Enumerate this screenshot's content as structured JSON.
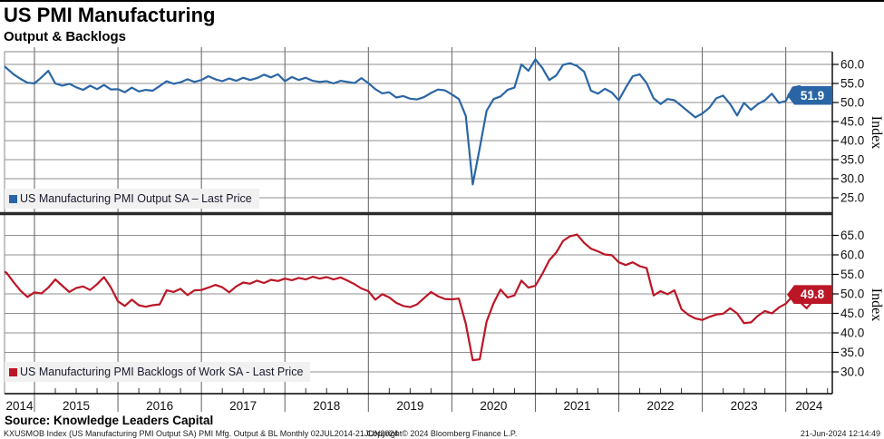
{
  "header": {
    "title": "US PMI Manufacturing",
    "subtitle": "Output & Backlogs"
  },
  "colors": {
    "output_blue": "#2a66a5",
    "backlogs_red": "#bb1626",
    "gridline": "#8f8f8f",
    "year_line": "#5f5f5f",
    "panel_border": "#333333",
    "separator": "#2b2b2b",
    "legend_bg": "#f1f1f1"
  },
  "right_axis": {
    "label_top": "Index",
    "label_bottom": "Index"
  },
  "chart_data": [
    {
      "type": "line",
      "name": "output",
      "legend": "US Manufacturing PMI Output SA – Last Price",
      "color": "#2a66a5",
      "last_price": "51.9",
      "x_start": "2014-07",
      "x_end": "2024-06",
      "frequency": "monthly",
      "ylim": [
        21,
        63
      ],
      "y_ticks": [
        "60.0",
        "55.0",
        "50.0",
        "45.0",
        "40.0",
        "35.0",
        "30.0",
        "25.0"
      ],
      "y_tick_values": [
        60,
        55,
        50,
        45,
        40,
        35,
        30,
        25
      ],
      "values": [
        61.0,
        60.6,
        59.0,
        57.4,
        56.2,
        55.2,
        55.0,
        56.6,
        58.3,
        55.0,
        54.4,
        54.9,
        54.0,
        53.3,
        54.4,
        53.5,
        54.6,
        53.4,
        53.5,
        52.7,
        53.9,
        52.9,
        53.3,
        53.1,
        54.3,
        55.6,
        54.9,
        55.3,
        56.1,
        55.4,
        55.9,
        56.9,
        56.1,
        55.6,
        56.3,
        55.7,
        56.5,
        55.9,
        56.4,
        57.3,
        56.6,
        57.4,
        55.6,
        56.7,
        55.9,
        56.5,
        55.7,
        55.4,
        55.6,
        55.0,
        55.7,
        55.4,
        55.1,
        56.4,
        55.1,
        53.5,
        52.4,
        52.7,
        51.3,
        51.7,
        51.0,
        50.8,
        51.4,
        52.5,
        53.4,
        53.2,
        52.1,
        50.9,
        46.5,
        28.5,
        38.0,
        47.8,
        50.9,
        51.6,
        53.3,
        53.9,
        60.0,
        58.3,
        61.3,
        59.1,
        55.9,
        57.1,
        59.9,
        60.3,
        59.6,
        58.1,
        53.1,
        52.3,
        53.6,
        52.6,
        50.6,
        53.9,
        56.9,
        57.4,
        55.1,
        51.1,
        49.6,
        50.9,
        50.6,
        49.1,
        47.6,
        46.1,
        47.1,
        48.6,
        51.1,
        51.8,
        49.6,
        46.6,
        49.9,
        48.1,
        49.6,
        50.6,
        52.3,
        49.9,
        50.4,
        53.9,
        54.3,
        51.6,
        52.9,
        51.9
      ]
    },
    {
      "type": "line",
      "name": "backlogs",
      "legend": "US Manufacturing PMI Backlogs of Work SA - Last Price",
      "color": "#bb1626",
      "last_price": "49.8",
      "x_start": "2014-07",
      "x_end": "2024-06",
      "frequency": "monthly",
      "ylim": [
        26,
        67
      ],
      "y_ticks": [
        "65.0",
        "60.0",
        "55.0",
        "50.0",
        "45.0",
        "40.0",
        "35.0",
        "30.0"
      ],
      "y_tick_values": [
        65,
        60,
        55,
        50,
        45,
        40,
        35,
        30
      ],
      "values": [
        55.6,
        56.3,
        55.4,
        53.0,
        50.8,
        49.2,
        50.4,
        50.1,
        51.6,
        53.7,
        52.1,
        50.5,
        51.5,
        51.9,
        51.0,
        52.5,
        54.3,
        51.6,
        48.1,
        46.9,
        48.5,
        47.1,
        46.7,
        47.1,
        47.3,
        50.9,
        50.5,
        51.3,
        49.7,
        50.9,
        51.0,
        51.6,
        52.3,
        51.7,
        50.4,
        51.9,
        52.9,
        52.6,
        53.4,
        52.8,
        53.6,
        53.3,
        53.9,
        53.5,
        54.1,
        53.7,
        54.4,
        53.9,
        54.3,
        53.7,
        54.2,
        53.4,
        52.5,
        51.4,
        50.7,
        48.5,
        49.9,
        49.1,
        47.7,
        46.9,
        46.6,
        47.3,
        48.9,
        50.5,
        49.4,
        48.7,
        48.6,
        48.8,
        42.4,
        33.0,
        33.2,
        42.9,
        47.6,
        51.1,
        49.1,
        49.6,
        53.4,
        51.6,
        52.1,
        55.1,
        58.6,
        60.6,
        63.6,
        64.8,
        65.2,
        63.1,
        61.6,
        60.9,
        60.1,
        59.9,
        58.1,
        57.4,
        58.1,
        57.1,
        56.6,
        49.6,
        50.7,
        49.9,
        50.9,
        46.1,
        44.6,
        43.7,
        43.3,
        44.1,
        44.7,
        44.9,
        46.3,
        45.0,
        42.5,
        42.7,
        44.4,
        45.6,
        45.0,
        46.5,
        47.5,
        49.5,
        48.0,
        46.3,
        48.4,
        49.8
      ]
    }
  ],
  "x_axis": {
    "years": [
      "2014",
      "2015",
      "2016",
      "2017",
      "2018",
      "2019",
      "2020",
      "2021",
      "2022",
      "2023",
      "2024"
    ]
  },
  "footer": {
    "source": "Source: Knowledge Leaders Capital",
    "left": "KXUSMOB Index (US Manufacturing PMI Output SA) PMI Mfg. Output & BL  Monthly 02JUL2014-21JUN2024",
    "center": "Copyright© 2024 Bloomberg Finance L.P.",
    "right": "21-Jun-2024 12:14:49"
  }
}
